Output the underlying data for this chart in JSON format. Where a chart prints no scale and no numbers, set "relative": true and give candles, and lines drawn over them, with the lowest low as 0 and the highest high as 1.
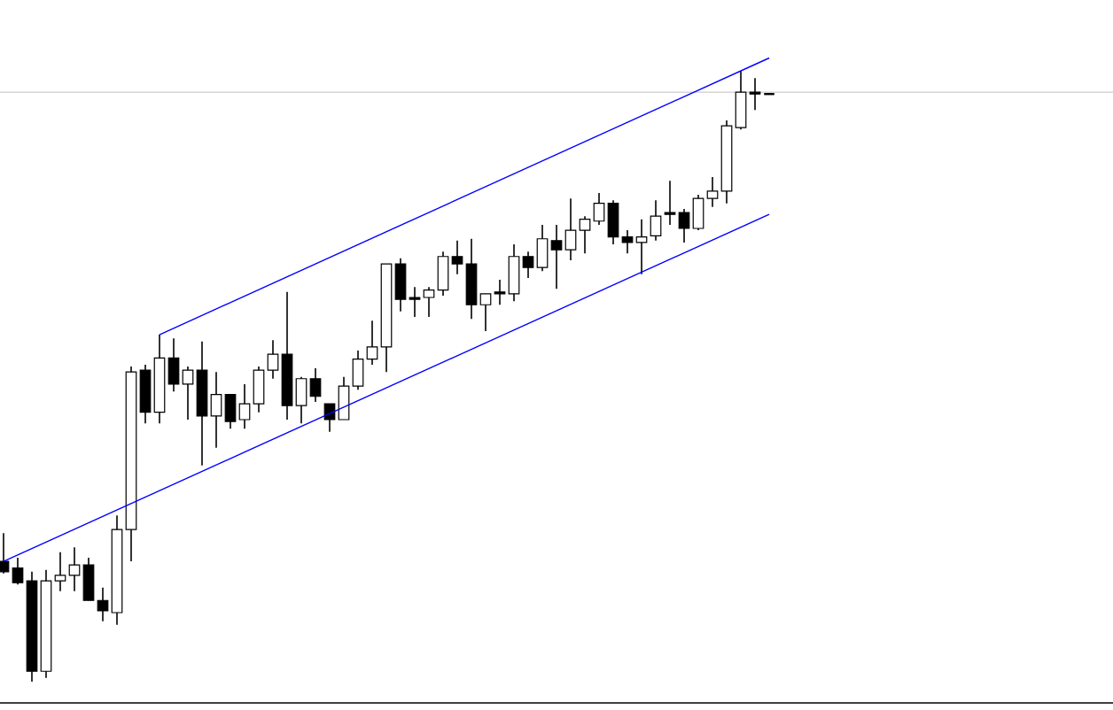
{
  "chart_data": {
    "type": "candlestick",
    "relative": true,
    "categories": [
      null,
      null,
      null,
      null,
      null,
      null,
      null,
      null,
      null,
      null,
      null,
      null,
      null,
      null,
      null,
      null,
      null,
      null,
      null,
      null,
      null,
      null,
      null,
      null,
      null,
      null,
      null,
      null,
      null,
      null,
      null,
      null,
      null,
      null,
      null,
      null,
      null,
      null,
      null,
      null,
      null,
      null,
      null,
      null,
      null,
      null,
      null,
      null,
      null,
      null,
      null,
      null,
      null,
      null,
      null
    ],
    "ohlc": [
      [
        0.197,
        0.243,
        0.177,
        0.18
      ],
      [
        0.186,
        0.203,
        0.159,
        0.162
      ],
      [
        0.165,
        0.18,
        0,
        0.017
      ],
      [
        0.017,
        0.183,
        0.006,
        0.165
      ],
      [
        0.165,
        0.212,
        0.148,
        0.174
      ],
      [
        0.174,
        0.22,
        0.148,
        0.191
      ],
      [
        0.191,
        0.203,
        0.133,
        0.133
      ],
      [
        0.133,
        0.154,
        0.099,
        0.116
      ],
      [
        0.113,
        0.272,
        0.093,
        0.249
      ],
      [
        0.249,
        0.516,
        0.197,
        0.507
      ],
      [
        0.51,
        0.519,
        0.423,
        0.441
      ],
      [
        0.441,
        0.568,
        0.423,
        0.53
      ],
      [
        0.53,
        0.562,
        0.475,
        0.487
      ],
      [
        0.487,
        0.516,
        0.429,
        0.51
      ],
      [
        0.51,
        0.557,
        0.354,
        0.435
      ],
      [
        0.435,
        0.507,
        0.383,
        0.47
      ],
      [
        0.47,
        0.47,
        0.414,
        0.426
      ],
      [
        0.429,
        0.487,
        0.414,
        0.455
      ],
      [
        0.455,
        0.516,
        0.441,
        0.51
      ],
      [
        0.51,
        0.559,
        0.496,
        0.536
      ],
      [
        0.536,
        0.638,
        0.429,
        0.452
      ],
      [
        0.452,
        0.499,
        0.423,
        0.496
      ],
      [
        0.496,
        0.513,
        0.458,
        0.467
      ],
      [
        0.455,
        0.455,
        0.409,
        0.429
      ],
      [
        0.429,
        0.499,
        0.429,
        0.484
      ],
      [
        0.484,
        0.542,
        0.478,
        0.528
      ],
      [
        0.528,
        0.591,
        0.519,
        0.548
      ],
      [
        0.548,
        0.684,
        0.507,
        0.684
      ],
      [
        0.684,
        0.693,
        0.606,
        0.626
      ],
      [
        0.629,
        0.646,
        0.597,
        0.626
      ],
      [
        0.629,
        0.646,
        0.597,
        0.641
      ],
      [
        0.641,
        0.704,
        0.632,
        0.696
      ],
      [
        0.696,
        0.722,
        0.667,
        0.684
      ],
      [
        0.684,
        0.725,
        0.594,
        0.617
      ],
      [
        0.617,
        0.635,
        0.574,
        0.635
      ],
      [
        0.638,
        0.658,
        0.617,
        0.635
      ],
      [
        0.635,
        0.716,
        0.623,
        0.696
      ],
      [
        0.696,
        0.704,
        0.661,
        0.678
      ],
      [
        0.678,
        0.748,
        0.672,
        0.725
      ],
      [
        0.722,
        0.748,
        0.643,
        0.707
      ],
      [
        0.707,
        0.791,
        0.69,
        0.739
      ],
      [
        0.739,
        0.762,
        0.701,
        0.757
      ],
      [
        0.754,
        0.8,
        0.748,
        0.783
      ],
      [
        0.783,
        0.788,
        0.716,
        0.728
      ],
      [
        0.728,
        0.739,
        0.701,
        0.719
      ],
      [
        0.719,
        0.757,
        0.667,
        0.728
      ],
      [
        0.73,
        0.788,
        0.722,
        0.762
      ],
      [
        0.768,
        0.82,
        0.748,
        0.765
      ],
      [
        0.768,
        0.774,
        0.719,
        0.742
      ],
      [
        0.742,
        0.797,
        0.739,
        0.791
      ],
      [
        0.791,
        0.826,
        0.777,
        0.803
      ],
      [
        0.803,
        0.919,
        0.783,
        0.91
      ],
      [
        0.907,
        1,
        0.904,
        0.965
      ],
      [
        0.965,
        0.988,
        0.936,
        0.962
      ],
      [
        0.962,
        0.962,
        0.962,
        0.962
      ]
    ],
    "series": [
      {
        "type": "line",
        "color": "#0000ff",
        "values": [
          null,
          null,
          null,
          null,
          null,
          null,
          null,
          null,
          null,
          null,
          null,
          0.568,
          null,
          null,
          null,
          null,
          null,
          null,
          null,
          null,
          null,
          null,
          null,
          null,
          null,
          null,
          null,
          null,
          null,
          null,
          null,
          null,
          null,
          null,
          null,
          null,
          null,
          null,
          null,
          null,
          null,
          null,
          null,
          null,
          null,
          null,
          null,
          null,
          null,
          null,
          null,
          null,
          null,
          null,
          1.021
        ]
      },
      {
        "type": "line",
        "color": "#0000ff",
        "values": [
          0.197,
          null,
          null,
          null,
          null,
          null,
          null,
          null,
          null,
          null,
          null,
          null,
          null,
          null,
          null,
          null,
          null,
          null,
          null,
          null,
          null,
          null,
          null,
          null,
          null,
          null,
          null,
          null,
          null,
          null,
          null,
          null,
          null,
          null,
          null,
          null,
          null,
          null,
          null,
          null,
          null,
          null,
          null,
          null,
          null,
          null,
          null,
          null,
          null,
          null,
          null,
          null,
          null,
          null,
          0.765
        ]
      }
    ],
    "ref_lines": [
      {
        "axis": "y",
        "value": 0.965,
        "color": "#c0c0c0"
      }
    ]
  }
}
